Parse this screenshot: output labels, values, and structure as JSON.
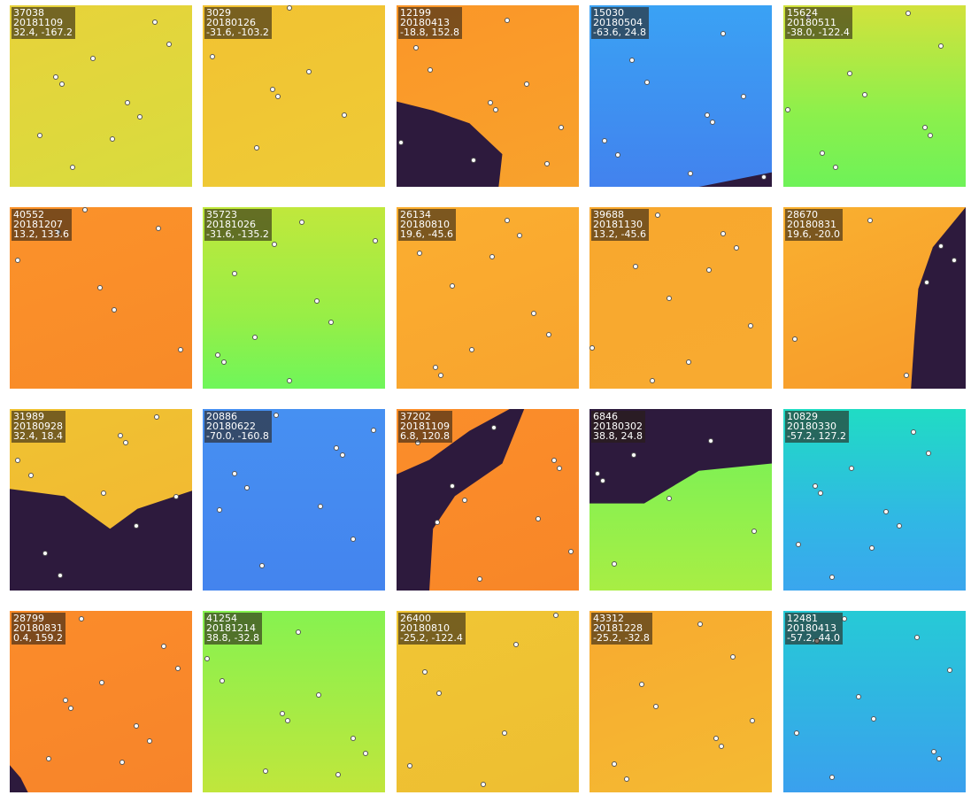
{
  "tiles": [
    {
      "id": "37038",
      "date": "20181109",
      "coords": "32.4, -167.2"
    },
    {
      "id": "3029",
      "date": "20180126",
      "coords": "-31.6, -103.2"
    },
    {
      "id": "12199",
      "date": "20180413",
      "coords": "-18.8, 152.8"
    },
    {
      "id": "15030",
      "date": "20180504",
      "coords": "-63.6, 24.8"
    },
    {
      "id": "15624",
      "date": "20180511",
      "coords": "-38.0, -122.4"
    },
    {
      "id": "40552",
      "date": "20181207",
      "coords": "13.2, 133.6"
    },
    {
      "id": "35723",
      "date": "20181026",
      "coords": "-31.6, -135.2"
    },
    {
      "id": "26134",
      "date": "20180810",
      "coords": "19.6, -45.6"
    },
    {
      "id": "39688",
      "date": "20181130",
      "coords": "13.2, -45.6"
    },
    {
      "id": "28670",
      "date": "20180831",
      "coords": "19.6, -20.0"
    },
    {
      "id": "31989",
      "date": "20180928",
      "coords": "32.4, 18.4"
    },
    {
      "id": "20886",
      "date": "20180622",
      "coords": "-70.0, -160.8"
    },
    {
      "id": "37202",
      "date": "20181109",
      "coords": "6.8, 120.8"
    },
    {
      "id": "6846",
      "date": "20180302",
      "coords": "38.8, 24.8"
    },
    {
      "id": "10829",
      "date": "20180330",
      "coords": "-57.2, 127.2"
    },
    {
      "id": "28799",
      "date": "20180831",
      "coords": "0.4, 159.2"
    },
    {
      "id": "41254",
      "date": "20181214",
      "coords": "38.8, -32.8"
    },
    {
      "id": "26400",
      "date": "20180810",
      "coords": "-25.2, -122.4"
    },
    {
      "id": "43312",
      "date": "20181228",
      "coords": "-25.2, -32.8"
    },
    {
      "id": "12481",
      "date": "20180413",
      "coords": "-57.2, 44.0"
    }
  ]
}
